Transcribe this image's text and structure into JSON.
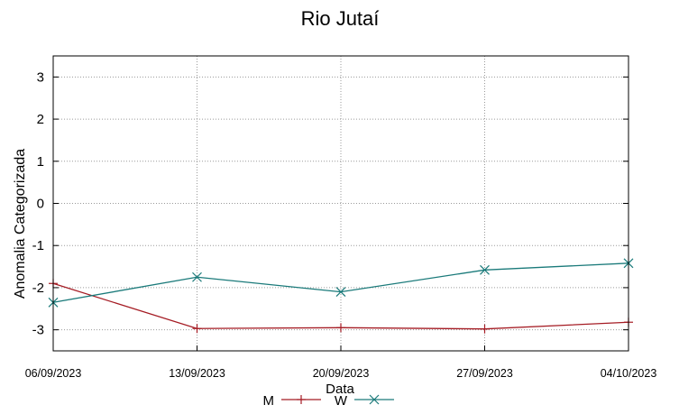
{
  "chart_data": {
    "type": "line",
    "title": "Rio Jutaí",
    "xlabel": "Data",
    "ylabel": "Anomalia Categorizada",
    "ylim": [
      -3.5,
      3.5
    ],
    "yticks": [
      3,
      2,
      1,
      0,
      -1,
      -2,
      -3
    ],
    "x": [
      "06/09/2023",
      "13/09/2023",
      "20/09/2023",
      "27/09/2023",
      "04/10/2023"
    ],
    "grid": true,
    "legend_position": "bottom-center",
    "series": [
      {
        "name": "M",
        "color": "#a51c24",
        "marker": "plus",
        "values": [
          -1.9,
          -2.97,
          -2.95,
          -2.98,
          -2.82
        ]
      },
      {
        "name": "W",
        "color": "#1a7a7a",
        "marker": "cross",
        "values": [
          -2.35,
          -1.75,
          -2.1,
          -1.58,
          -1.42
        ]
      }
    ]
  }
}
